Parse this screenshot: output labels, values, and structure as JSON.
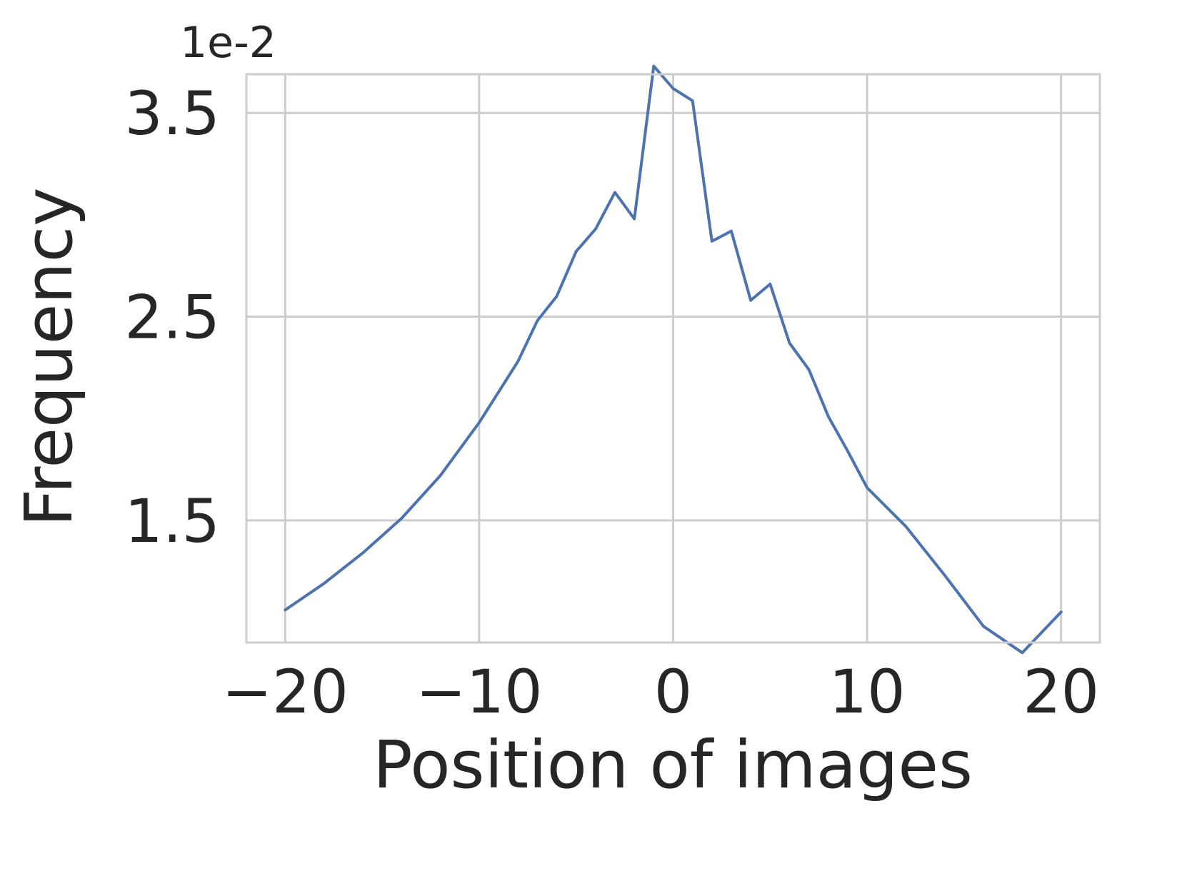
{
  "chart_data": {
    "type": "line",
    "title": "",
    "xlabel": "Position of images",
    "ylabel": "Frequency",
    "y_scale_label": "1e-2",
    "xlim": [
      -22,
      22
    ],
    "ylim": [
      0.9,
      3.69
    ],
    "x_ticks": [
      -20,
      -10,
      0,
      10,
      20
    ],
    "x_tick_labels": [
      "−20",
      "−10",
      "0",
      "10",
      "20"
    ],
    "y_ticks": [
      1.5,
      2.5,
      3.5
    ],
    "y_tick_labels": [
      "1.5",
      "2.5",
      "3.5"
    ],
    "grid": true,
    "legend": "none",
    "colors": {
      "line": "#4C72B0",
      "grid": "#CCCCCC",
      "frame": "#CCCCCC",
      "text": "#262626"
    },
    "series": [
      {
        "x": [
          -20,
          -18,
          -16,
          -14,
          -12,
          -10,
          -9,
          -8,
          -7,
          -6,
          -5,
          -4,
          -3,
          -2,
          -1,
          0,
          1,
          2,
          3,
          4,
          5,
          6,
          7,
          8,
          9,
          10,
          12,
          14,
          16,
          18,
          20
        ],
        "values": [
          1.06,
          1.19,
          1.34,
          1.51,
          1.72,
          1.98,
          2.13,
          2.28,
          2.48,
          2.6,
          2.82,
          2.93,
          3.11,
          2.98,
          3.73,
          3.62,
          3.56,
          2.87,
          2.92,
          2.58,
          2.66,
          2.37,
          2.24,
          2.01,
          1.84,
          1.66,
          1.47,
          1.23,
          0.98,
          0.85,
          1.05
        ]
      }
    ]
  }
}
